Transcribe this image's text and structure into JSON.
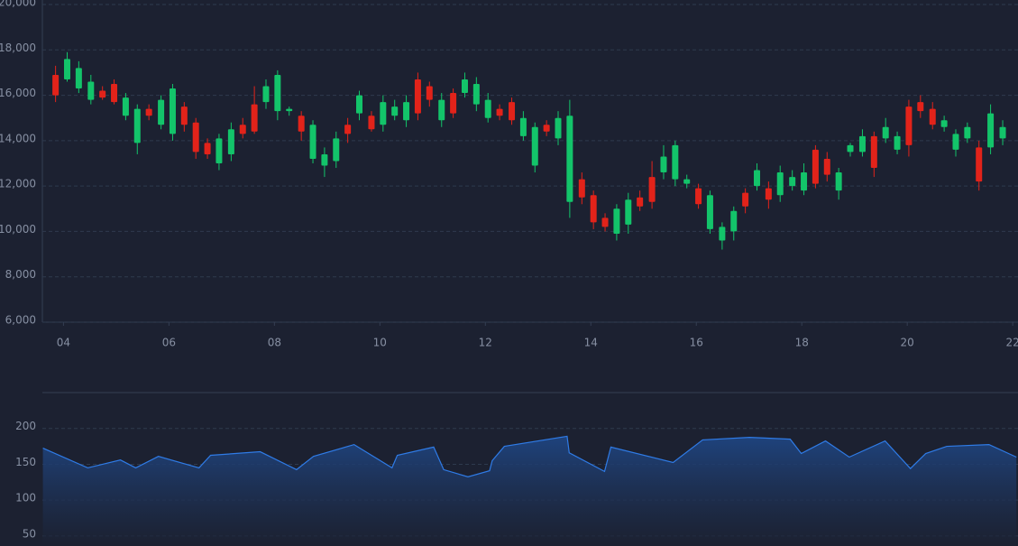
{
  "chart_data": [
    {
      "type": "candlestick",
      "x": [
        3.85,
        4.07,
        4.29,
        4.52,
        4.74,
        4.96,
        5.18,
        5.4,
        5.62,
        5.85,
        6.07,
        6.29,
        6.51,
        6.73,
        6.95,
        7.18,
        7.4,
        7.62,
        7.84,
        8.06,
        8.28,
        8.51,
        8.73,
        8.95,
        9.17,
        9.39,
        9.61,
        9.84,
        10.06,
        10.28,
        10.5,
        10.72,
        10.94,
        11.17,
        11.39,
        11.61,
        11.83,
        12.05,
        12.27,
        12.5,
        12.72,
        12.94,
        13.16,
        13.38,
        13.6,
        13.83,
        14.05,
        14.27,
        14.49,
        14.71,
        14.93,
        15.16,
        15.38,
        15.6,
        15.82,
        16.04,
        16.26,
        16.49,
        16.71,
        16.93,
        17.15,
        17.37,
        17.59,
        17.82,
        18.04,
        18.26,
        18.48,
        18.7,
        18.92,
        19.15,
        19.37,
        19.59,
        19.81,
        20.03,
        20.25,
        20.48,
        20.7,
        20.92,
        21.14,
        21.36,
        21.58,
        21.81
      ],
      "open": [
        16900,
        16700,
        16300,
        15800,
        16200,
        16500,
        15100,
        13900,
        15400,
        14700,
        14300,
        15500,
        14800,
        13900,
        13000,
        13400,
        14700,
        15600,
        15700,
        15300,
        15300,
        15100,
        13200,
        12900,
        13100,
        14700,
        15200,
        15100,
        14700,
        15100,
        14900,
        16700,
        16400,
        14900,
        16100,
        16100,
        15600,
        15000,
        15400,
        15700,
        14200,
        12900,
        14700,
        14100,
        11300,
        12300,
        11600,
        10600,
        9900,
        10300,
        11500,
        12400,
        12600,
        12300,
        12100,
        11900,
        10100,
        9600,
        10000,
        11700,
        12000,
        11900,
        11600,
        12000,
        11800,
        13600,
        13200,
        11800,
        13500,
        13500,
        14200,
        14100,
        13600,
        15500,
        15700,
        15400,
        14600,
        13600,
        14100,
        13700,
        13700,
        14100
      ],
      "high": [
        17300,
        17900,
        17500,
        16900,
        16400,
        16700,
        16100,
        15600,
        15600,
        16000,
        16500,
        15700,
        15000,
        14100,
        14300,
        14800,
        15000,
        16400,
        16700,
        17100,
        15500,
        15300,
        14900,
        13700,
        14400,
        15000,
        16200,
        15300,
        16000,
        15800,
        16000,
        17000,
        16600,
        16100,
        16300,
        17000,
        16800,
        16100,
        15600,
        15900,
        15300,
        14800,
        14900,
        15300,
        15800,
        12600,
        11800,
        10800,
        11200,
        11700,
        11800,
        13100,
        13800,
        14000,
        12500,
        12100,
        11800,
        10400,
        11100,
        11900,
        13000,
        12200,
        12900,
        12700,
        13000,
        13800,
        13500,
        12800,
        13900,
        14500,
        14400,
        15000,
        14400,
        15800,
        16000,
        15700,
        15100,
        14500,
        14800,
        14000,
        15600,
        14900
      ],
      "low": [
        15700,
        16600,
        16100,
        15600,
        15800,
        15600,
        14900,
        13400,
        14900,
        14500,
        14000,
        14400,
        13200,
        13200,
        12700,
        13100,
        14100,
        14300,
        15400,
        14900,
        15100,
        14000,
        13000,
        12400,
        12800,
        13900,
        14900,
        14400,
        14400,
        14900,
        14600,
        14900,
        15500,
        14600,
        15000,
        15900,
        15300,
        14800,
        14900,
        14700,
        14000,
        12600,
        14200,
        13800,
        10600,
        11200,
        10100,
        10000,
        9600,
        9900,
        10900,
        11000,
        12300,
        12000,
        11900,
        11000,
        9900,
        9200,
        9600,
        10800,
        11800,
        11000,
        11300,
        11800,
        11600,
        11900,
        12200,
        11400,
        13300,
        13300,
        12400,
        13900,
        13400,
        13300,
        15000,
        14500,
        14400,
        13300,
        13900,
        11800,
        13400,
        13800
      ],
      "close": [
        16000,
        17600,
        17200,
        16600,
        15900,
        15700,
        15900,
        15400,
        15100,
        15800,
        16300,
        14700,
        13500,
        13400,
        14100,
        14500,
        14300,
        14400,
        16400,
        16900,
        15400,
        14400,
        14700,
        13400,
        14100,
        14300,
        16000,
        14500,
        15700,
        15500,
        15700,
        15200,
        15800,
        15800,
        15200,
        16700,
        16500,
        15800,
        15100,
        14900,
        15000,
        14600,
        14400,
        15000,
        15100,
        11500,
        10400,
        10200,
        11000,
        11400,
        11100,
        11300,
        13300,
        13800,
        12300,
        11200,
        11600,
        10200,
        10900,
        11100,
        12700,
        11400,
        12600,
        12400,
        12600,
        12100,
        12500,
        12600,
        13800,
        14200,
        12800,
        14600,
        14200,
        13800,
        15300,
        14700,
        14900,
        14300,
        14600,
        12200,
        15200,
        14600
      ],
      "up_color": "#13c46a",
      "down_color": "#e2231a",
      "xlim": [
        3.6,
        22.1
      ],
      "xticks": [
        {
          "value": 4,
          "label": "04"
        },
        {
          "value": 6,
          "label": "06"
        },
        {
          "value": 8,
          "label": "08"
        },
        {
          "value": 10,
          "label": "10"
        },
        {
          "value": 12,
          "label": "12"
        },
        {
          "value": 14,
          "label": "14"
        },
        {
          "value": 16,
          "label": "16"
        },
        {
          "value": 18,
          "label": "18"
        },
        {
          "value": 20,
          "label": "20"
        },
        {
          "value": 22,
          "label": "22"
        }
      ],
      "ylim": [
        6000,
        20000
      ],
      "yticks": [
        {
          "value": 6000,
          "label": "6,000"
        },
        {
          "value": 8000,
          "label": "8,000"
        },
        {
          "value": 10000,
          "label": "10,000"
        },
        {
          "value": 12000,
          "label": "12,000"
        },
        {
          "value": 14000,
          "label": "14,000"
        },
        {
          "value": 16000,
          "label": "16,000"
        },
        {
          "value": 18000,
          "label": "18,000"
        },
        {
          "value": 20000,
          "label": "20,000"
        }
      ],
      "grid": true
    },
    {
      "type": "area",
      "x": [
        3.61,
        4.46,
        5.08,
        5.37,
        5.8,
        6.57,
        6.79,
        7.73,
        8.42,
        8.74,
        9.51,
        10.23,
        10.33,
        11.02,
        11.21,
        11.67,
        12.08,
        12.13,
        12.36,
        13.55,
        13.59,
        14.26,
        14.38,
        15.56,
        16.12,
        17.01,
        17.78,
        17.99,
        18.45,
        18.9,
        19.58,
        20.06,
        20.35,
        20.75,
        21.55,
        22.07
      ],
      "values": [
        172.5,
        145,
        156,
        145,
        161,
        145,
        162.5,
        167.5,
        142.5,
        161,
        177.5,
        145,
        162.5,
        174,
        142.5,
        132.5,
        141,
        155,
        175,
        189,
        166,
        140,
        174,
        152.5,
        184,
        187.5,
        185,
        165,
        182.5,
        160,
        182.5,
        144,
        165,
        175,
        177.5,
        160
      ],
      "color": "#2f7be6",
      "xlim": [
        3.6,
        22.1
      ],
      "ylim": [
        36,
        250
      ],
      "yticks": [
        50,
        100,
        150,
        200
      ],
      "grid": true
    }
  ]
}
